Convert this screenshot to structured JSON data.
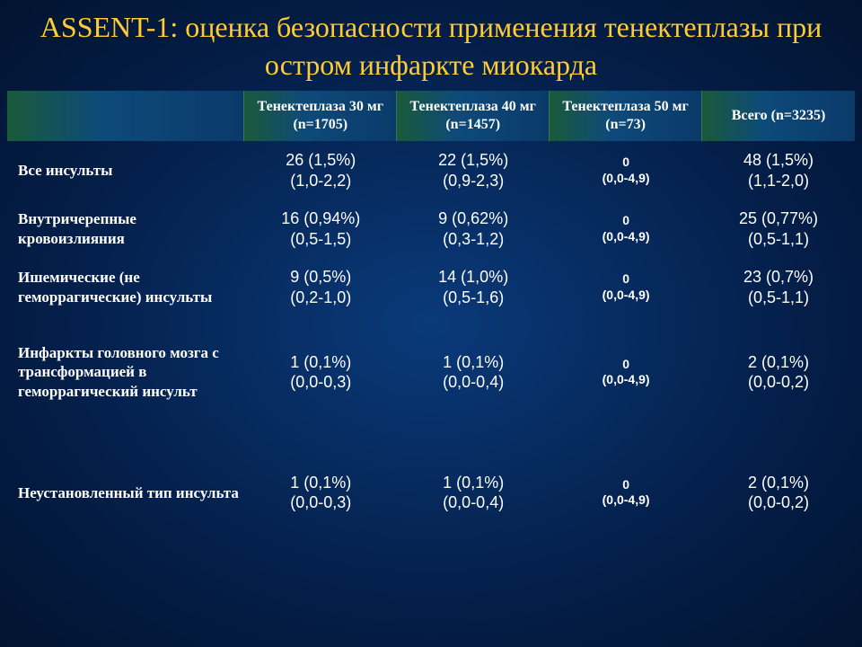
{
  "title": "ASSENT-1: оценка безопасности применения тенектеплазы при остром инфаркте миокарда",
  "columns": {
    "rowhead": "",
    "c1": "Тенектеплаза 30 мг (n=1705)",
    "c2": "Тенектеплаза 40 мг (n=1457)",
    "c3": "Тенектеплаза 50 мг (n=73)",
    "c4": "Всего\n(n=3235)"
  },
  "rows": [
    {
      "label": "Все инсульты",
      "c1": "26 (1,5%)\n(1,0-2,2)",
      "c2": "22 (1,5%)\n(0,9-2,3)",
      "c3": "0\n(0,0-4,9)",
      "c4": "48 (1,5%)\n(1,1-2,0)",
      "cls": ""
    },
    {
      "label": "Внутричерепные кровоизлияния",
      "c1": "16 (0,94%)\n(0,5-1,5)",
      "c2": "9 (0,62%)\n(0,3-1,2)",
      "c3": "0\n(0,0-4,9)",
      "c4": "25 (0,77%)\n(0,5-1,1)",
      "cls": ""
    },
    {
      "label": "Ишемические (не геморрагические) инсульты",
      "c1": "9 (0,5%)\n(0,2-1,0)",
      "c2": "14 (1,0%)\n(0,5-1,6)",
      "c3": "0\n(0,0-4,9)",
      "c4": "23 (0,7%)\n(0,5-1,1)",
      "cls": ""
    },
    {
      "label": "Инфаркты головного мозга с трансформацией в геморрагический инсульт",
      "c1": "1 (0,1%)\n(0,0-0,3)",
      "c2": "1 (0,1%)\n(0,0-0,4)",
      "c3": "0\n(0,0-4,9)",
      "c4": "2 (0,1%)\n(0,0-0,2)",
      "cls": "tall-row"
    },
    {
      "label": "Неустановленный тип инсульта",
      "c1": "1 (0,1%)\n(0,0-0,3)",
      "c2": "1 (0,1%)\n(0,0-0,4)",
      "c3": "0\n(0,0-4,9)",
      "c4": "2 (0,1%)\n(0,0-0,2)",
      "cls": "taller-row"
    }
  ],
  "colwidths": [
    "28%",
    "18%",
    "18%",
    "18%",
    "18%"
  ]
}
